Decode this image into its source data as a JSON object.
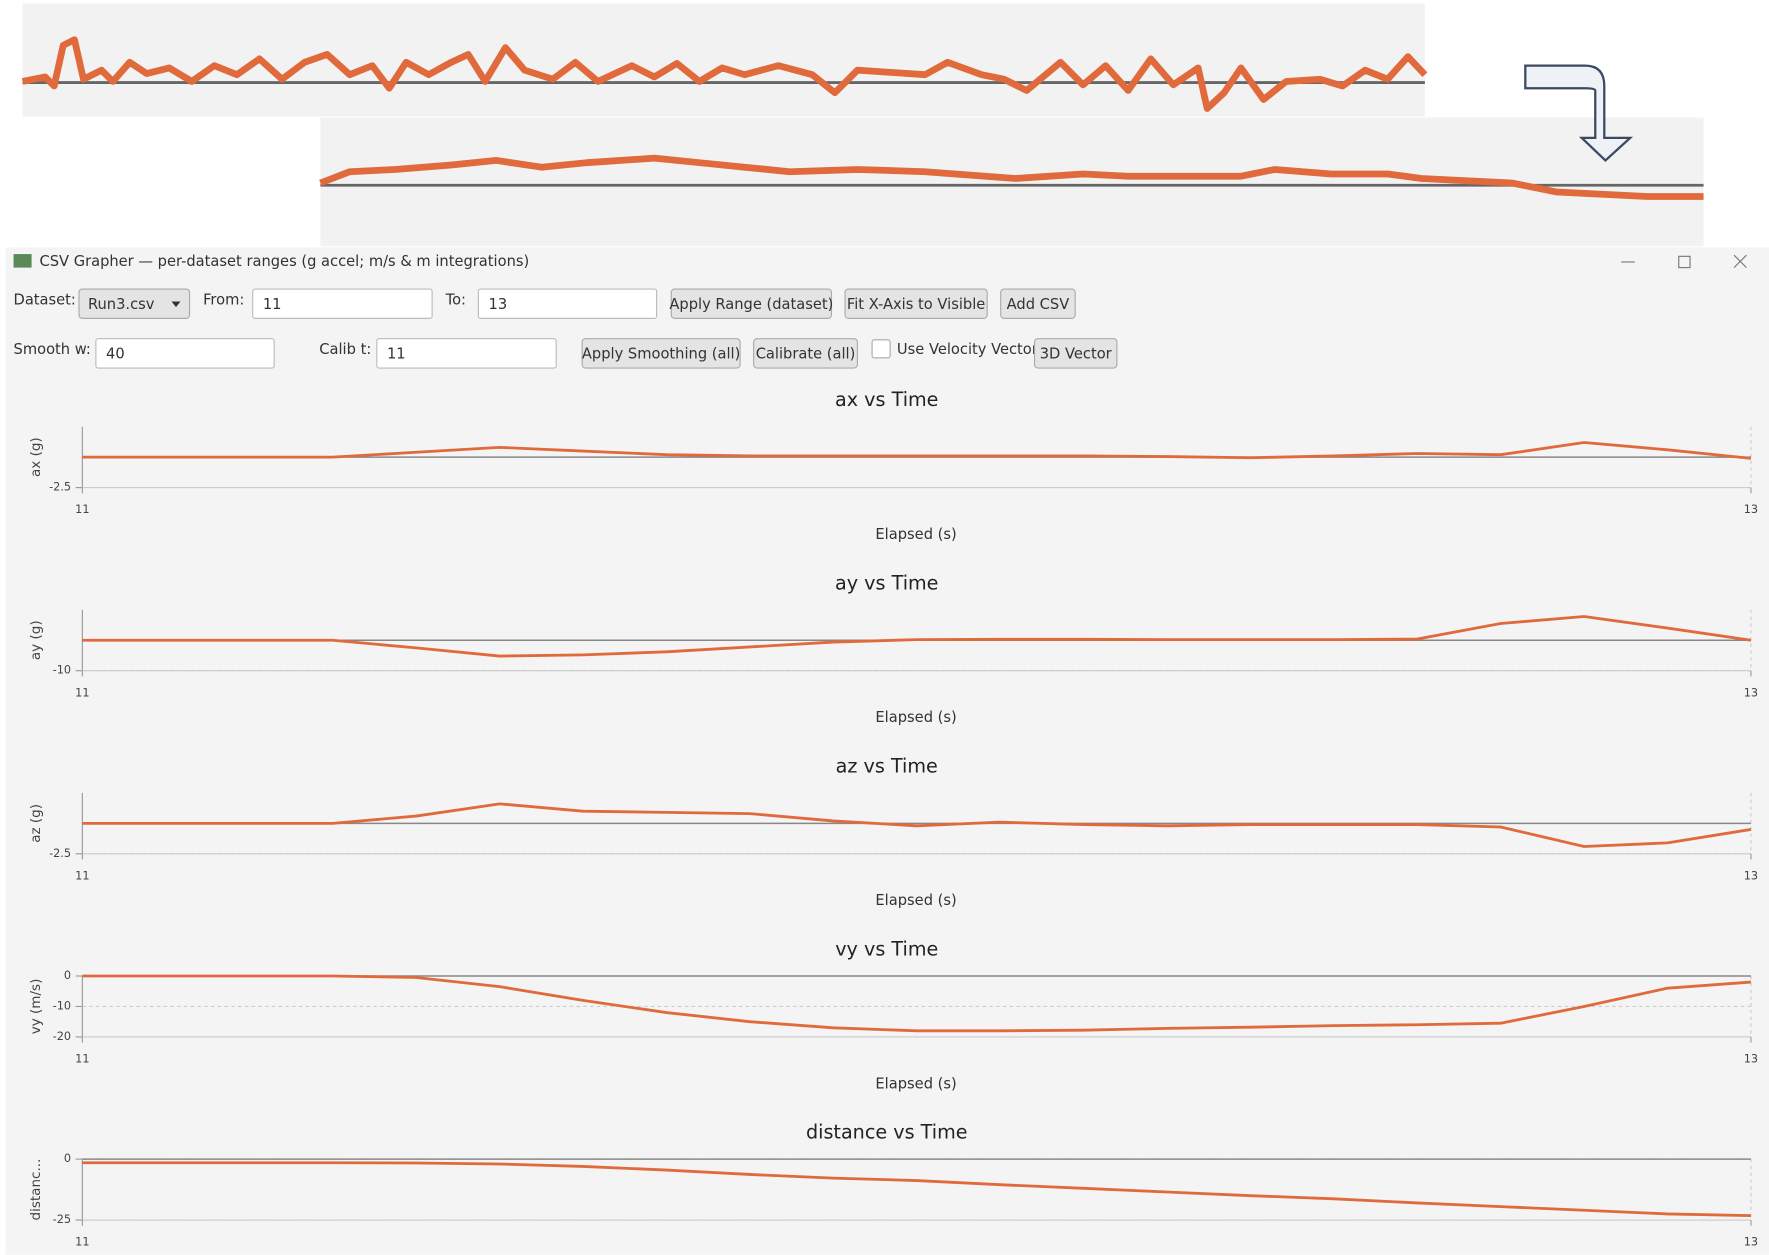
{
  "window": {
    "title": "CSV Grapher — per-dataset ranges (g accel; m/s & m integrations)"
  },
  "toolbar": {
    "dataset_label": "Dataset:",
    "dataset": "Run3.csv",
    "from_label": "From:",
    "from": 11,
    "to_label": "To:",
    "to": 13,
    "apply_range": "Apply Range (dataset)",
    "fit_x": "Fit X-Axis to Visible",
    "add_csv": "Add CSV",
    "smooth_label": "Smooth w:",
    "smooth": 40,
    "calib_label": "Calib t:",
    "calib": 11,
    "apply_smoothing": "Apply Smoothing (all)",
    "calibrate": "Calibrate (all)",
    "velocity_vector": "Use Velocity Vector",
    "vector_3d": "3D Vector"
  },
  "chart_data": [
    {
      "type": "line",
      "title": "ax vs Time",
      "x_label": "Elapsed (s)",
      "y_label": "ax (g)",
      "x": [
        11,
        11.1,
        11.2,
        11.3,
        11.4,
        11.5,
        11.6,
        11.7,
        11.8,
        11.9,
        12,
        12.1,
        12.2,
        12.3,
        12.4,
        12.5,
        12.6,
        12.7,
        12.8,
        12.9,
        13
      ],
      "series": [
        {
          "color": "#e06a3b",
          "values": [
            0,
            0,
            0,
            0,
            0.4,
            0.8,
            0.5,
            0.2,
            0.1,
            0.1,
            0.1,
            0.1,
            0.1,
            0.05,
            -0.05,
            0.1,
            0.3,
            0.2,
            1.2,
            0.6,
            -0.1
          ]
        }
      ],
      "xlim": [
        11,
        13
      ],
      "xticks": [
        11,
        13
      ],
      "ylim": [
        -2.5,
        2.5
      ],
      "yticks": [
        -2.5
      ],
      "grid": true
    },
    {
      "type": "line",
      "title": "ay vs Time",
      "x_label": "Elapsed (s)",
      "y_label": "ay (g)",
      "x": [
        11,
        11.1,
        11.2,
        11.3,
        11.4,
        11.5,
        11.6,
        11.7,
        11.8,
        11.9,
        12,
        12.1,
        12.2,
        12.3,
        12.4,
        12.5,
        12.6,
        12.7,
        12.8,
        12.9,
        13
      ],
      "series": [
        {
          "color": "#e06a3b",
          "values": [
            0,
            0,
            0,
            0,
            -2.5,
            -5.2,
            -4.8,
            -3.8,
            -2.2,
            -0.6,
            0.2,
            0.3,
            0.3,
            0.2,
            0.2,
            0.2,
            0.4,
            5.5,
            7.8,
            4,
            0
          ]
        }
      ],
      "xlim": [
        11,
        13
      ],
      "xticks": [
        11,
        13
      ],
      "ylim": [
        -10,
        10
      ],
      "yticks": [
        -10
      ],
      "grid": true
    },
    {
      "type": "line",
      "title": "az vs Time",
      "x_label": "Elapsed (s)",
      "y_label": "az (g)",
      "x": [
        11,
        11.1,
        11.2,
        11.3,
        11.4,
        11.5,
        11.6,
        11.7,
        11.8,
        11.9,
        12,
        12.1,
        12.2,
        12.3,
        12.4,
        12.5,
        12.6,
        12.7,
        12.8,
        12.9,
        13
      ],
      "series": [
        {
          "color": "#e06a3b",
          "values": [
            0,
            0,
            0,
            0,
            0.6,
            1.6,
            1.0,
            0.9,
            0.8,
            0.2,
            -0.2,
            0.1,
            -0.1,
            -0.2,
            -0.1,
            -0.1,
            -0.1,
            -0.3,
            -1.9,
            -1.6,
            -0.5
          ]
        }
      ],
      "xlim": [
        11,
        13
      ],
      "xticks": [
        11,
        13
      ],
      "ylim": [
        -2.5,
        2.5
      ],
      "yticks": [
        -2.5
      ],
      "grid": true
    },
    {
      "type": "line",
      "title": "vy vs Time",
      "x_label": "Elapsed (s)",
      "y_label": "vy (m/s)",
      "x": [
        11,
        11.1,
        11.2,
        11.3,
        11.4,
        11.5,
        11.6,
        11.7,
        11.8,
        11.9,
        12,
        12.1,
        12.2,
        12.3,
        12.4,
        12.5,
        12.6,
        12.7,
        12.8,
        12.9,
        13
      ],
      "series": [
        {
          "color": "#e06a3b",
          "values": [
            0,
            0,
            0,
            0,
            -0.5,
            -3.5,
            -8,
            -12,
            -15,
            -17,
            -18,
            -18,
            -17.8,
            -17.2,
            -16.8,
            -16.3,
            -16,
            -15.5,
            -10,
            -4,
            -2
          ]
        }
      ],
      "xlim": [
        11,
        13
      ],
      "xticks": [
        11,
        13
      ],
      "ylim": [
        -20,
        0
      ],
      "yticks": [
        -20,
        -10,
        0
      ],
      "grid": true
    },
    {
      "type": "line",
      "title": "distance vs Time",
      "y_label": "distanc...",
      "x": [
        11,
        11.1,
        11.2,
        11.3,
        11.4,
        11.5,
        11.6,
        11.7,
        11.8,
        11.9,
        12,
        12.1,
        12.2,
        12.3,
        12.4,
        12.5,
        12.6,
        12.7,
        12.8,
        12.9,
        13
      ],
      "series": [
        {
          "color": "#e06a3b",
          "values": [
            -1.5,
            -1.5,
            -1.5,
            -1.5,
            -1.6,
            -2,
            -3,
            -4.5,
            -6.3,
            -7.8,
            -8.8,
            -10.5,
            -12,
            -13.5,
            -15,
            -16.3,
            -18,
            -19.5,
            -21,
            -22.5,
            -23.2
          ]
        }
      ],
      "xlim": [
        11,
        13
      ],
      "xticks": [
        11,
        13
      ],
      "ylim": [
        -25,
        0
      ],
      "yticks": [
        -25,
        0
      ],
      "grid": true
    }
  ]
}
